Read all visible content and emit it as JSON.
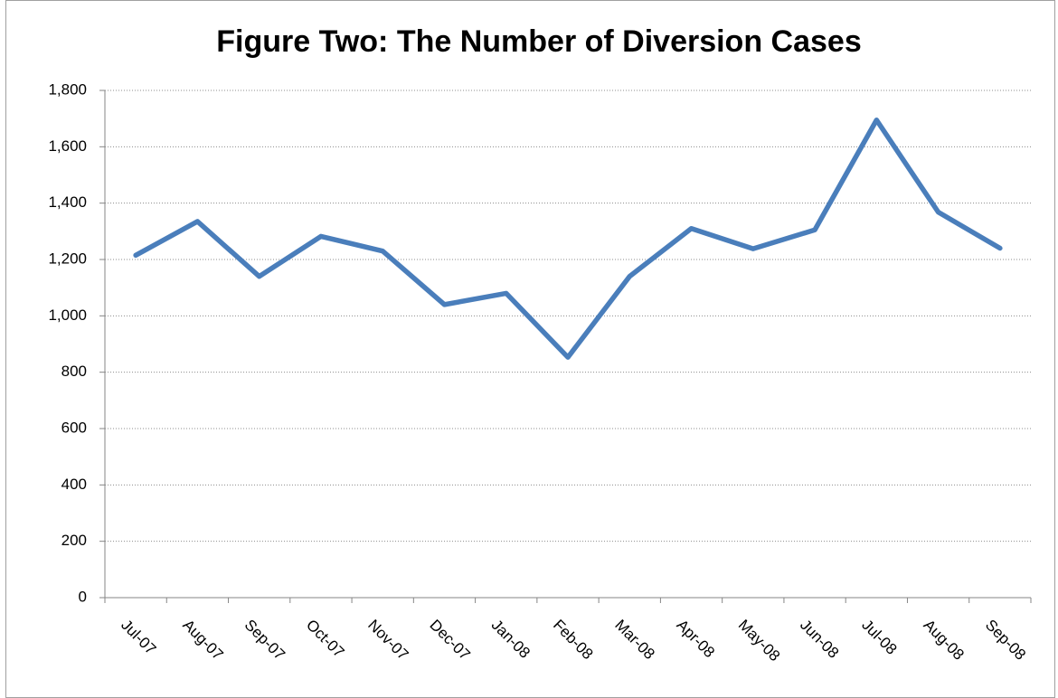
{
  "chart_data": {
    "type": "line",
    "title": "Figure Two: The Number of Diversion Cases",
    "categories": [
      "Jul-07",
      "Aug-07",
      "Sep-07",
      "Oct-07",
      "Nov-07",
      "Dec-07",
      "Jan-08",
      "Feb-08",
      "Mar-08",
      "Apr-08",
      "May-08",
      "Jun-08",
      "Jul-08",
      "Aug-08",
      "Sep-08"
    ],
    "series": [
      {
        "name": "Diversion Cases",
        "color": "#4a7ebb",
        "values": [
          1215,
          1335,
          1140,
          1282,
          1230,
          1040,
          1080,
          853,
          1140,
          1310,
          1238,
          1305,
          1695,
          1368,
          1240
        ]
      }
    ],
    "ylim": [
      0,
      1800
    ],
    "yticks": [
      0,
      200,
      400,
      600,
      800,
      {
        "value": 1000,
        "label": "1,000"
      },
      {
        "value": 1200,
        "label": "1,200"
      },
      {
        "value": 1400,
        "label": "1,400"
      },
      {
        "value": 1600,
        "label": "1,600"
      },
      {
        "value": 1800,
        "label": "1,800"
      }
    ],
    "grid": true
  }
}
